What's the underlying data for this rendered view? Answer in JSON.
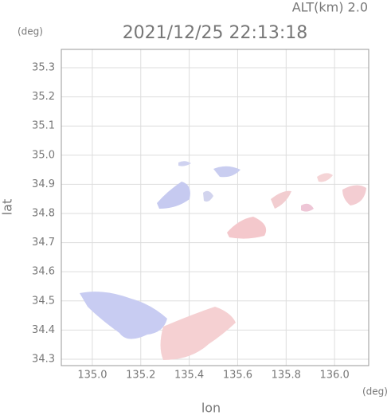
{
  "chart_data": {
    "type": "map",
    "title": "2021/12/25 22:13:18",
    "annotation": "ALT(km) 2.0",
    "xlabel": "lon",
    "ylabel": "lat",
    "xunit": "(deg)",
    "yunit": "(deg)",
    "xlim": [
      134.872,
      136.141
    ],
    "ylim": [
      34.278,
      35.363
    ],
    "xticks": [
      {
        "value": 135.0,
        "label": "135.0"
      },
      135.2,
      135.4,
      135.6,
      135.8,
      {
        "value": 136.0,
        "label": "136.0"
      }
    ],
    "yticks": [
      34.3,
      34.4,
      34.5,
      34.6,
      34.7,
      34.8,
      34.9,
      {
        "value": 35.0,
        "label": "35.0"
      },
      35.1,
      35.2,
      35.3
    ],
    "grid": true
  }
}
